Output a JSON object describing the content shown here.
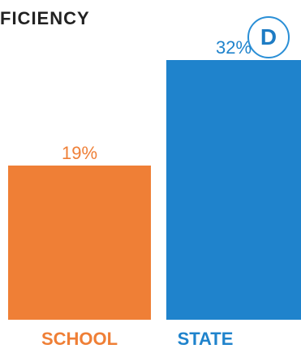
{
  "header": {
    "title": "FICIENCY",
    "grade": "D"
  },
  "colors": {
    "school": "#ef7f36",
    "state": "#1f83cc",
    "grade_ring": "#2a8fd6"
  },
  "chart_data": {
    "type": "bar",
    "categories": [
      "SCHOOL",
      "STATE"
    ],
    "values": [
      19,
      32
    ],
    "value_labels": [
      "19%",
      "32%"
    ],
    "ylim": [
      0,
      36
    ]
  }
}
